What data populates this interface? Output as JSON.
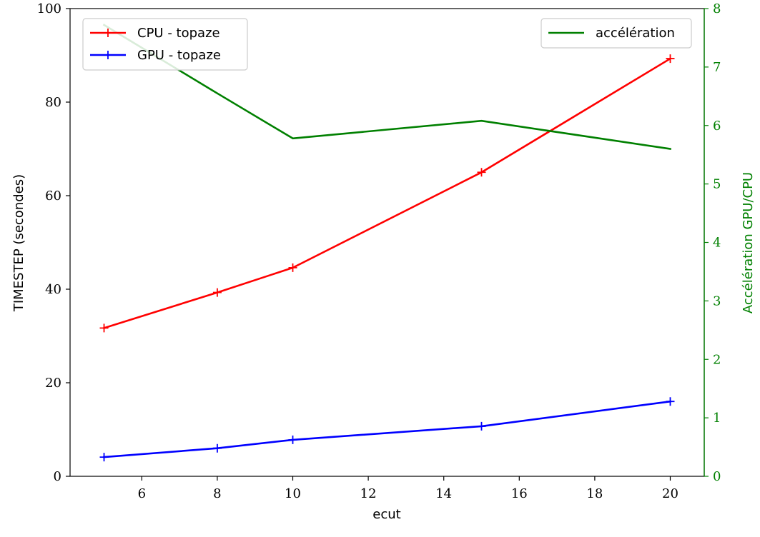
{
  "chart_data": {
    "type": "line",
    "x": [
      5,
      8,
      10,
      15,
      20
    ],
    "xlabel": "ecut",
    "ylabel": "TIMESTEP (secondes)",
    "y2label": "Accélération GPU/CPU",
    "xlim": [
      4.1,
      20.9
    ],
    "ylim": [
      0,
      100
    ],
    "y2lim": [
      0,
      8
    ],
    "xticks": [
      6,
      8,
      10,
      12,
      14,
      16,
      18,
      20
    ],
    "yticks": [
      0,
      20,
      40,
      60,
      80,
      100
    ],
    "y2ticks": [
      0,
      1,
      2,
      3,
      4,
      5,
      6,
      7,
      8
    ],
    "series": [
      {
        "name": "CPU - topaze",
        "axis": "left",
        "color": "#ff0000",
        "marker": "plus",
        "values": [
          31.7,
          39.3,
          44.6,
          65.0,
          89.3
        ]
      },
      {
        "name": "GPU - topaze",
        "axis": "left",
        "color": "#0000ff",
        "marker": "plus",
        "values": [
          4.1,
          6.0,
          7.8,
          10.7,
          16.0
        ]
      },
      {
        "name": "accélération",
        "axis": "right",
        "color": "#008000",
        "marker": "none",
        "values": [
          7.72,
          6.55,
          5.78,
          6.08,
          5.6
        ]
      }
    ],
    "legends": [
      {
        "placement": "upper left",
        "entries": [
          "CPU - topaze",
          "GPU - topaze"
        ]
      },
      {
        "placement": "upper right",
        "entries": [
          "accélération"
        ]
      }
    ],
    "grid": false
  }
}
